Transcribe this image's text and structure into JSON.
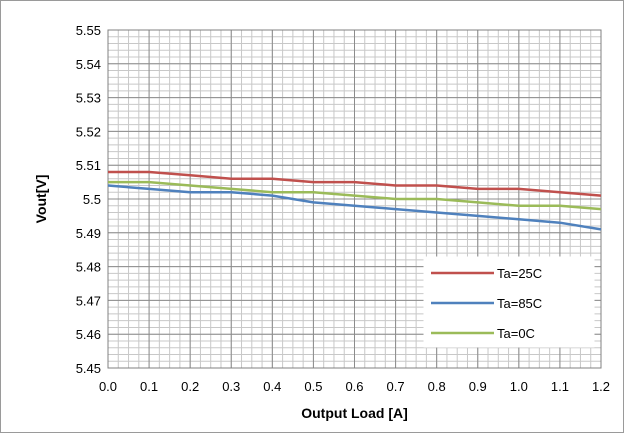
{
  "chart_data": {
    "type": "line",
    "title": "",
    "xlabel": "Output Load [A]",
    "ylabel": "Vout[V]",
    "xlim": [
      0.0,
      1.2
    ],
    "ylim": [
      5.45,
      5.55
    ],
    "x_ticks": [
      "0.0",
      "0.1",
      "0.2",
      "0.3",
      "0.4",
      "0.5",
      "0.6",
      "0.7",
      "0.8",
      "0.9",
      "1.0",
      "1.1",
      "1.2"
    ],
    "y_ticks": [
      "5.55",
      "5.54",
      "5.53",
      "5.52",
      "5.51",
      "5.5",
      "5.49",
      "5.48",
      "5.47",
      "5.46",
      "5.45"
    ],
    "grid": true,
    "legend_position": "bottom-right",
    "x": [
      0.0,
      0.1,
      0.2,
      0.3,
      0.4,
      0.5,
      0.6,
      0.7,
      0.8,
      0.9,
      1.0,
      1.1,
      1.2
    ],
    "series": [
      {
        "name": "Ta=25C",
        "color": "#c0504d",
        "values": [
          5.508,
          5.508,
          5.507,
          5.506,
          5.506,
          5.505,
          5.505,
          5.504,
          5.504,
          5.503,
          5.503,
          5.502,
          5.501
        ]
      },
      {
        "name": "Ta=85C",
        "color": "#4f81bd",
        "values": [
          5.504,
          5.503,
          5.502,
          5.502,
          5.501,
          5.499,
          5.498,
          5.497,
          5.496,
          5.495,
          5.494,
          5.493,
          5.491
        ]
      },
      {
        "name": "Ta=0C",
        "color": "#9bbb59",
        "values": [
          5.505,
          5.505,
          5.504,
          5.503,
          5.502,
          5.502,
          5.501,
          5.5,
          5.5,
          5.499,
          5.498,
          5.498,
          5.497
        ]
      }
    ]
  }
}
